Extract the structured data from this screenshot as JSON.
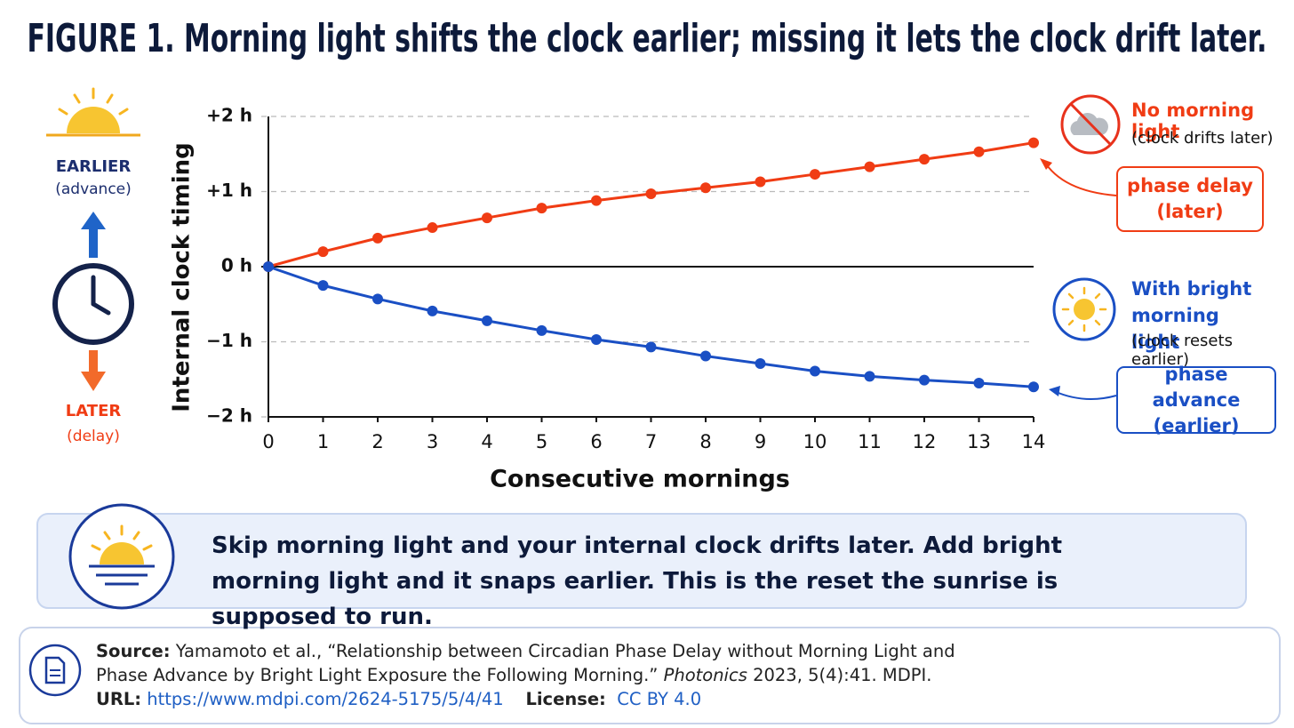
{
  "chart_data": {
    "type": "line",
    "title": "FIGURE 1. Morning light shifts the clock earlier; missing it lets the clock drift later.",
    "y_label": "Internal clock timing",
    "x_label": "Consecutive mornings",
    "x": [
      0,
      1,
      2,
      3,
      4,
      5,
      6,
      7,
      8,
      9,
      10,
      11,
      12,
      13,
      14
    ],
    "xlim": [
      0,
      14
    ],
    "xticks": [
      0,
      1,
      2,
      3,
      4,
      5,
      6,
      7,
      8,
      9,
      10,
      11,
      12,
      13,
      14
    ],
    "ylim": [
      -2,
      2
    ],
    "yticks": [
      {
        "value": 2,
        "label": "+2 h"
      },
      {
        "value": 1,
        "label": "+1 h"
      },
      {
        "value": 0,
        "label": "0 h"
      },
      {
        "value": -1,
        "label": "−1 h"
      },
      {
        "value": -2,
        "label": "−2 h"
      }
    ],
    "grid": true,
    "series": [
      {
        "name": "No morning light",
        "note": "(clock drifts later)",
        "tag": "phase delay",
        "tag_sub": "(later)",
        "color": "#f03c14",
        "values": [
          0,
          0.2,
          0.38,
          0.52,
          0.65,
          0.78,
          0.88,
          0.97,
          1.05,
          1.13,
          1.23,
          1.33,
          1.43,
          1.53,
          1.65
        ]
      },
      {
        "name": "With bright morning light",
        "note": "(clock resets earlier)",
        "tag": "phase advance",
        "tag_sub": "(earlier)",
        "color": "#1a4fc4",
        "values": [
          0,
          -0.25,
          -0.43,
          -0.59,
          -0.72,
          -0.85,
          -0.97,
          -1.07,
          -1.19,
          -1.29,
          -1.39,
          -1.46,
          -1.51,
          -1.55,
          -1.6
        ]
      }
    ],
    "side": {
      "earlier": "EARLIER",
      "earlier_sub": "(advance)",
      "later": "LATER",
      "later_sub": "(delay)"
    }
  },
  "callout": "Skip morning light and your internal clock drifts later. Add bright morning light and it snaps earlier. This is the reset the sunrise is supposed to run.",
  "source": {
    "label": "Source:",
    "before": "Yamamoto et al., “Relationship between Circadian Phase Delay without Morning Light and Phase Advance by Bright Light Exposure the Following Morning.” ",
    "journal": "Photonics",
    "after": " 2023, 5(4):41. MDPI.",
    "url_label": "URL:",
    "url": "https://www.mdpi.com/2624-5175/5/4/41",
    "license_label": "License:",
    "license": "CC BY 4.0"
  }
}
